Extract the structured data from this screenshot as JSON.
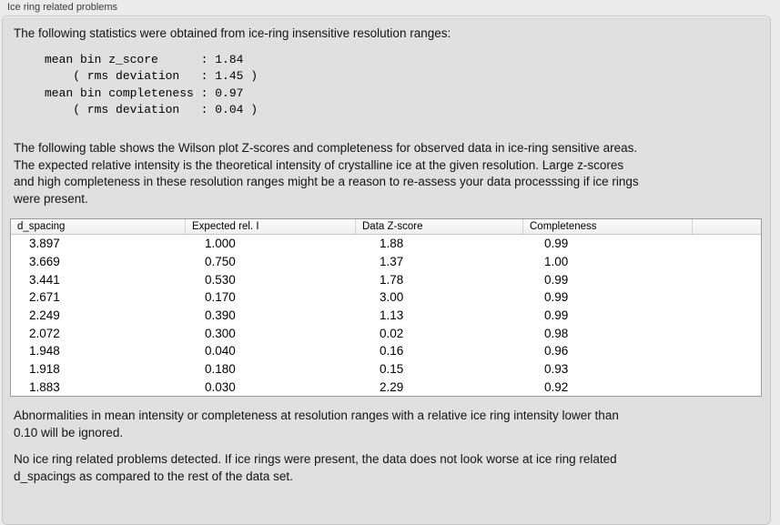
{
  "panel": {
    "title": "Ice ring related problems"
  },
  "sections": {
    "intro": "The following statistics were obtained from ice-ring insensitive resolution ranges:",
    "stats_block": "mean bin z_score      : 1.84\n    ( rms deviation   : 1.45 )\nmean bin completeness : 0.97\n    ( rms deviation   : 0.04 )",
    "table_description": "The following table shows the Wilson plot Z-scores and completeness for observed data in ice-ring sensitive areas.\nThe expected relative intensity is the theoretical intensity of crystalline ice at the given resolution. Large z-scores\nand high completeness in these resolution ranges might be a reason to re-assess your data processsing if ice rings\nwere present.",
    "ignore_note": "Abnormalities in mean intensity or completeness at resolution ranges with a relative ice ring intensity lower than\n0.10 will be ignored.",
    "conclusion": "No ice ring related problems detected. If ice rings were present, the data does not look worse at ice ring related\nd_spacings as compared to the rest of the data set."
  },
  "table": {
    "headers": [
      "d_spacing",
      "Expected rel. I",
      "Data Z-score",
      "Completeness",
      ""
    ],
    "rows": [
      [
        "3.897",
        "1.000",
        "1.88",
        "0.99"
      ],
      [
        "3.669",
        "0.750",
        "1.37",
        "1.00"
      ],
      [
        "3.441",
        "0.530",
        "1.78",
        "0.99"
      ],
      [
        "2.671",
        "0.170",
        "3.00",
        "0.99"
      ],
      [
        "2.249",
        "0.390",
        "1.13",
        "0.99"
      ],
      [
        "2.072",
        "0.300",
        "0.02",
        "0.98"
      ],
      [
        "1.948",
        "0.040",
        "0.16",
        "0.96"
      ],
      [
        "1.918",
        "0.180",
        "0.15",
        "0.93"
      ],
      [
        "1.883",
        "0.030",
        "2.29",
        "0.92"
      ]
    ]
  }
}
